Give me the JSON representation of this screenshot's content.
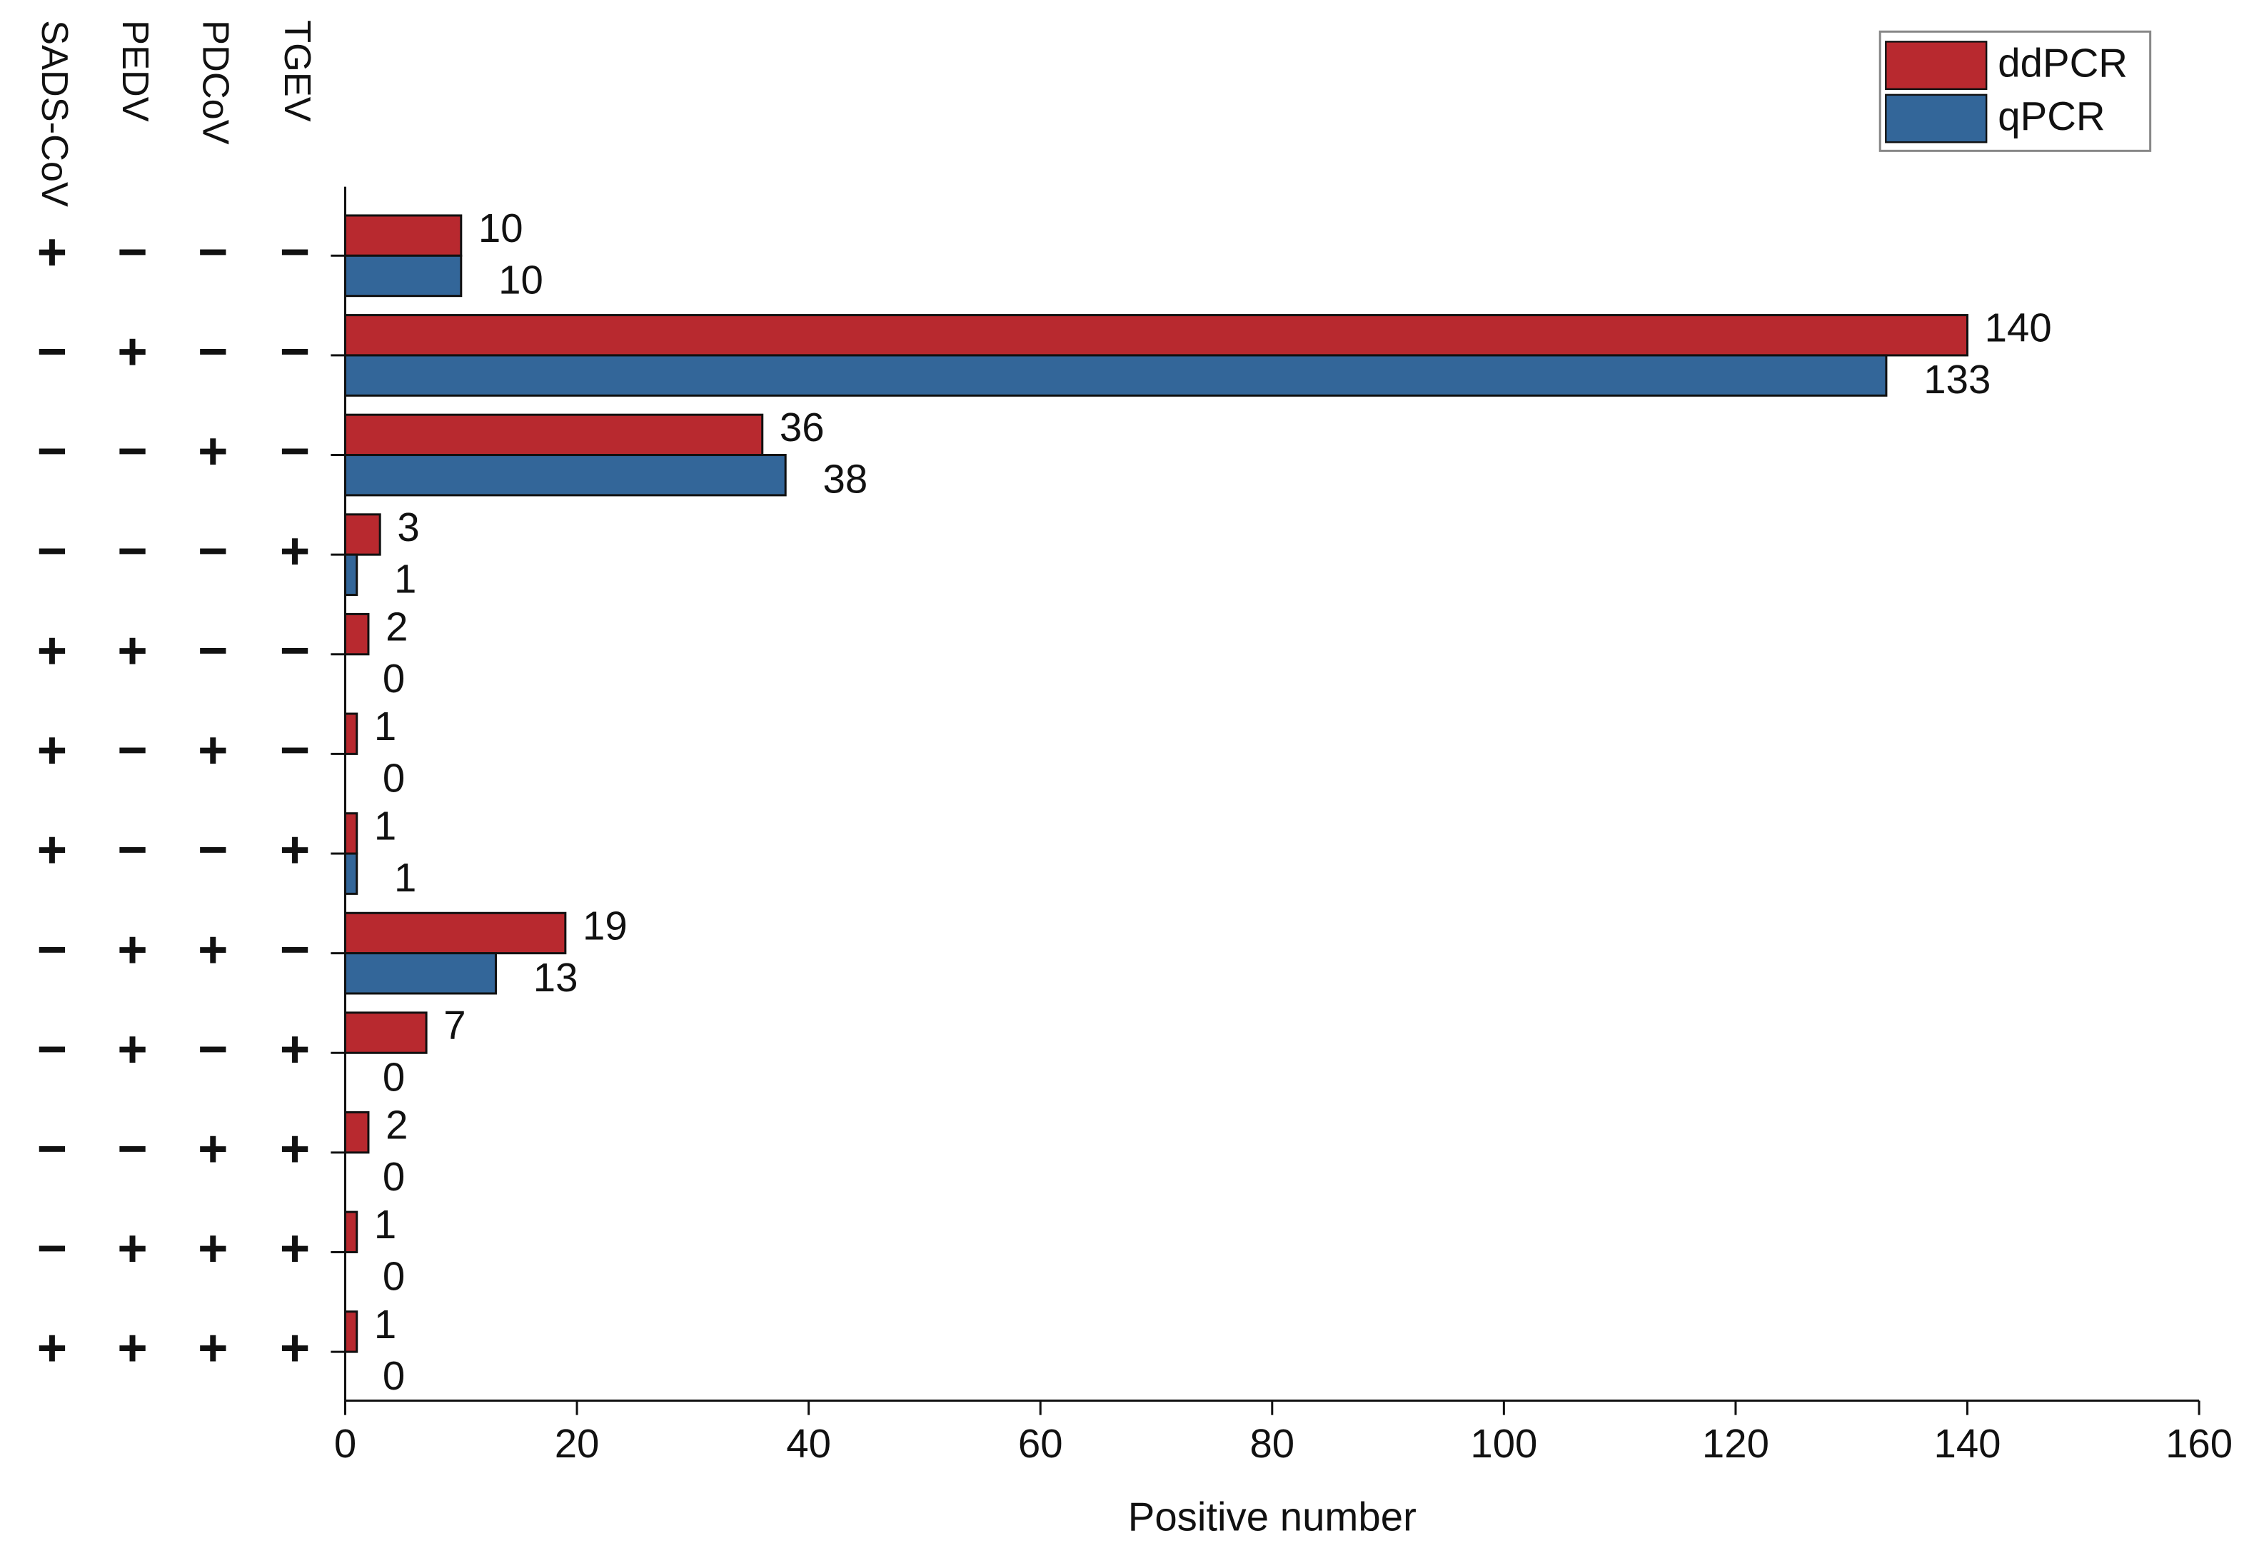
{
  "chart_data": {
    "type": "bar",
    "orientation": "horizontal",
    "category_columns": [
      "SADS-CoV",
      "PEDV",
      "PDCoV",
      "TGEV"
    ],
    "categories": [
      [
        "+",
        "−",
        "−",
        "−"
      ],
      [
        "−",
        "+",
        "−",
        "−"
      ],
      [
        "−",
        "−",
        "+",
        "−"
      ],
      [
        "−",
        "−",
        "−",
        "+"
      ],
      [
        "+",
        "+",
        "−",
        "−"
      ],
      [
        "+",
        "−",
        "+",
        "−"
      ],
      [
        "+",
        "−",
        "−",
        "+"
      ],
      [
        "−",
        "+",
        "+",
        "−"
      ],
      [
        "−",
        "+",
        "−",
        "+"
      ],
      [
        "−",
        "−",
        "+",
        "+"
      ],
      [
        "−",
        "+",
        "+",
        "+"
      ],
      [
        "+",
        "+",
        "+",
        "+"
      ]
    ],
    "series": [
      {
        "name": "ddPCR",
        "color": "#b8292f",
        "values": [
          10,
          140,
          36,
          3,
          2,
          1,
          1,
          19,
          7,
          2,
          1,
          1
        ]
      },
      {
        "name": "qPCR",
        "color": "#336699",
        "values": [
          10,
          133,
          38,
          1,
          0,
          0,
          1,
          13,
          0,
          0,
          0,
          0
        ]
      }
    ],
    "xlabel": "Positive number",
    "xlim": [
      0,
      160
    ],
    "xticks": [
      0,
      20,
      40,
      60,
      80,
      100,
      120,
      140,
      160
    ],
    "legend": "upper right",
    "data_labels": true
  }
}
